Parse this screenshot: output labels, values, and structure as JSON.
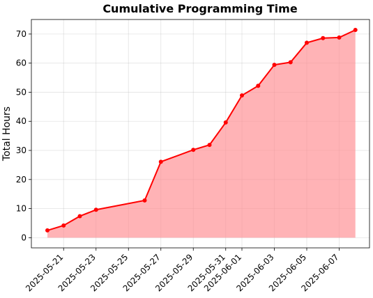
{
  "chart_data": {
    "type": "area",
    "title": "Cumulative Programming Time",
    "xlabel": "",
    "ylabel": "Total Hours",
    "x": [
      "2025-05-20",
      "2025-05-21",
      "2025-05-22",
      "2025-05-23",
      "2025-05-26",
      "2025-05-27",
      "2025-05-29",
      "2025-05-30",
      "2025-05-31",
      "2025-06-01",
      "2025-06-02",
      "2025-06-03",
      "2025-06-04",
      "2025-06-05",
      "2025-06-06",
      "2025-06-07",
      "2025-06-08"
    ],
    "series": [
      {
        "values": [
          2.5,
          4.2,
          7.4,
          9.6,
          12.8,
          26.1,
          30.2,
          31.9,
          39.6,
          48.9,
          52.2,
          59.4,
          60.3,
          67.0,
          68.6,
          68.8,
          71.4
        ]
      }
    ],
    "x_ticks": [
      "2025-05-21",
      "2025-05-23",
      "2025-05-25",
      "2025-05-27",
      "2025-05-29",
      "2025-05-31",
      "2025-06-01",
      "2025-06-03",
      "2025-06-05",
      "2025-06-07"
    ],
    "y_ticks": [
      0,
      10,
      20,
      30,
      40,
      50,
      60,
      70
    ],
    "ylim": [
      -3.5,
      75
    ],
    "xlim": [
      "2025-05-19",
      "2025-06-08"
    ],
    "grid": true,
    "colors": {
      "line": "#ff0000",
      "fill": "#ff8b8f",
      "marker": "#ff0000"
    }
  }
}
